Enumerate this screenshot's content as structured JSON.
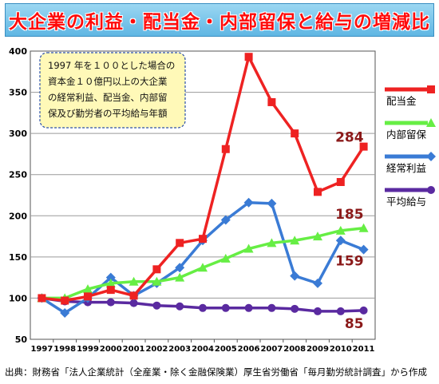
{
  "title": "大企業の利益・配当金・内部留保と給与の増減比",
  "source_note": "出典：財務省「法人企業統計（全産業・除く金融保険業）厚生省労働省「毎月勤労統計調査」から作成",
  "chart_data": {
    "type": "line",
    "x": [
      "1997",
      "1998",
      "1999",
      "2000",
      "2001",
      "2002",
      "2003",
      "2004",
      "2005",
      "2006",
      "2007",
      "2008",
      "2009",
      "2010",
      "2011"
    ],
    "ylim": [
      50,
      400
    ],
    "yticks": [
      50,
      100,
      150,
      200,
      250,
      300,
      350,
      400
    ],
    "grid": true,
    "note_lines": [
      "1997 年を１００とした場合の",
      "資本金１０億円以上の大企業",
      "の経常利益、配当金、内部留",
      "保及び勤労者の平均給与年額"
    ],
    "series": [
      {
        "name": "配当金",
        "color": "#ee2222",
        "marker": "square",
        "values": [
          100,
          97,
          102,
          110,
          103,
          135,
          167,
          172,
          281,
          393,
          338,
          300,
          229,
          241,
          284
        ],
        "end_label": "284",
        "end_label_color": "#8b1a1a"
      },
      {
        "name": "内部留保",
        "color": "#66ee44",
        "marker": "triangle",
        "values": [
          100,
          100,
          111,
          118,
          120,
          120,
          125,
          137,
          148,
          160,
          167,
          170,
          175,
          182,
          185
        ],
        "end_label": "185",
        "end_label_color": "#8b1a1a"
      },
      {
        "name": "経常利益",
        "color": "#3a7bd5",
        "marker": "diamond",
        "values": [
          100,
          82,
          100,
          125,
          103,
          118,
          137,
          170,
          195,
          216,
          215,
          127,
          118,
          170,
          159
        ],
        "end_label": "159",
        "end_label_color": "#8b1a1a"
      },
      {
        "name": "平均給与",
        "color": "#5a2aa0",
        "marker": "circle",
        "values": [
          100,
          96,
          95,
          95,
          94,
          91,
          90,
          88,
          88,
          88,
          88,
          87,
          84,
          84,
          85
        ],
        "end_label": "85",
        "end_label_color": "#8b1a1a"
      }
    ]
  }
}
